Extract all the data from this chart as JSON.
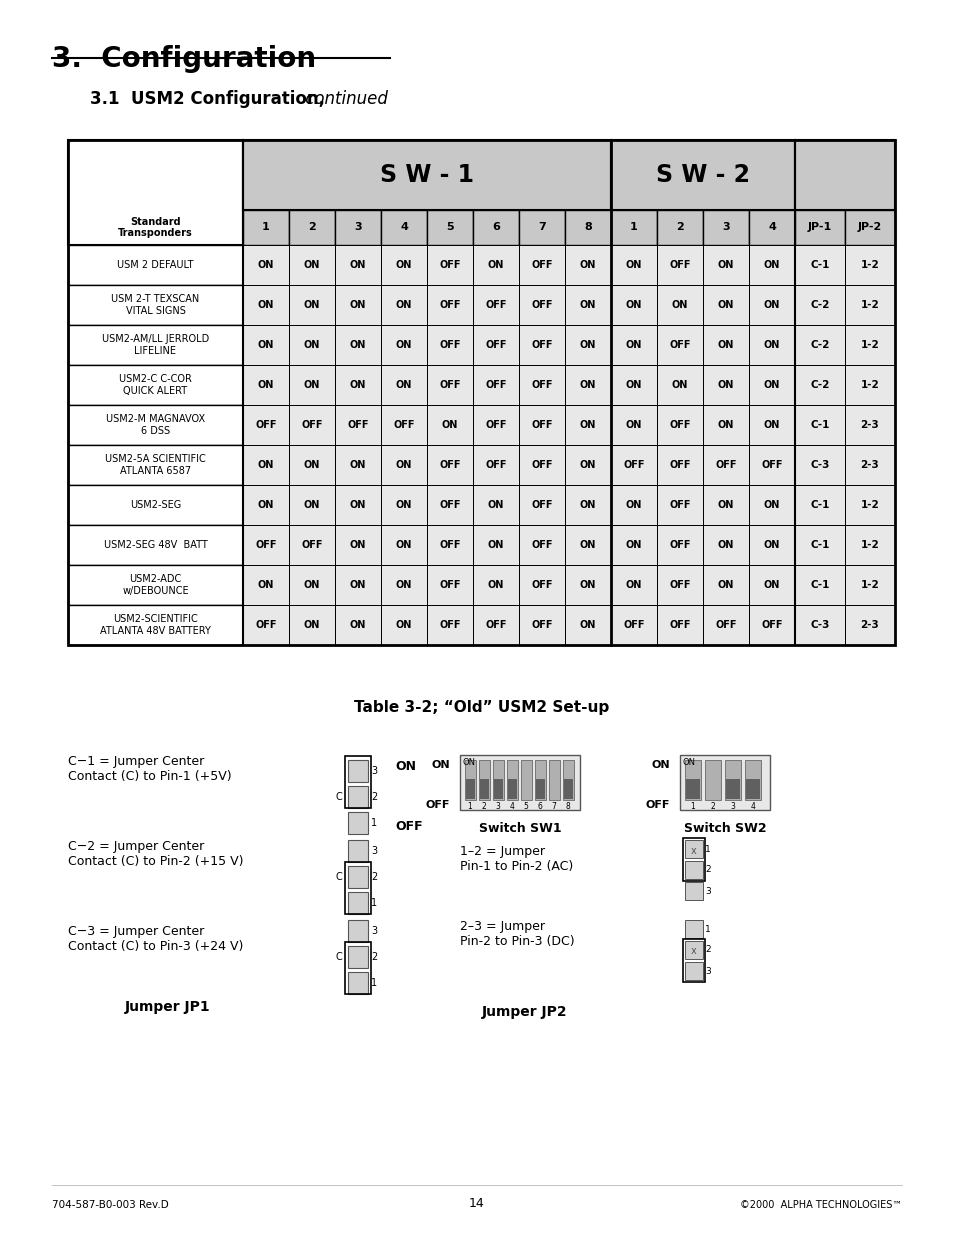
{
  "page_title": "3.  Configuration",
  "section_title_bold": "3.1  USM2 Configuration,",
  "section_title_italic": " continued",
  "table_caption": "Table 3-2; “Old” USM2 Set-up",
  "footer_left": "704-587-B0-003 Rev.D",
  "footer_center": "14",
  "footer_right": "©2000  ALPHA TECHNOLOGIES™",
  "sw1_label": "S W - 1",
  "sw2_label": "S W - 2",
  "col_header_left": "Standard\nTransponders",
  "sw1_cols": [
    "1",
    "2",
    "3",
    "4",
    "5",
    "6",
    "7",
    "8"
  ],
  "sw2_cols": [
    "1",
    "2",
    "3",
    "4"
  ],
  "jp_cols": [
    "JP-1",
    "JP-2"
  ],
  "rows": [
    {
      "name": "USM 2 DEFAULT",
      "sw1": [
        "ON",
        "ON",
        "ON",
        "ON",
        "OFF",
        "ON",
        "OFF",
        "ON"
      ],
      "sw2": [
        "ON",
        "OFF",
        "ON",
        "ON"
      ],
      "jp1": "C-1",
      "jp2": "1-2"
    },
    {
      "name": "USM 2-T TEXSCAN\nVITAL SIGNS",
      "sw1": [
        "ON",
        "ON",
        "ON",
        "ON",
        "OFF",
        "OFF",
        "OFF",
        "ON"
      ],
      "sw2": [
        "ON",
        "ON",
        "ON",
        "ON"
      ],
      "jp1": "C-2",
      "jp2": "1-2"
    },
    {
      "name": "USM2-AM/LL JERROLD\nLIFELINE",
      "sw1": [
        "ON",
        "ON",
        "ON",
        "ON",
        "OFF",
        "OFF",
        "OFF",
        "ON"
      ],
      "sw2": [
        "ON",
        "OFF",
        "ON",
        "ON"
      ],
      "jp1": "C-2",
      "jp2": "1-2"
    },
    {
      "name": "USM2-C C-COR\nQUICK ALERT",
      "sw1": [
        "ON",
        "ON",
        "ON",
        "ON",
        "OFF",
        "OFF",
        "OFF",
        "ON"
      ],
      "sw2": [
        "ON",
        "ON",
        "ON",
        "ON"
      ],
      "jp1": "C-2",
      "jp2": "1-2"
    },
    {
      "name": "USM2-M MAGNAVOX\n6 DSS",
      "sw1": [
        "OFF",
        "OFF",
        "OFF",
        "OFF",
        "ON",
        "OFF",
        "OFF",
        "ON"
      ],
      "sw2": [
        "ON",
        "OFF",
        "ON",
        "ON"
      ],
      "jp1": "C-1",
      "jp2": "2-3"
    },
    {
      "name": "USM2-5A SCIENTIFIC\nATLANTA 6587",
      "sw1": [
        "ON",
        "ON",
        "ON",
        "ON",
        "OFF",
        "OFF",
        "OFF",
        "ON"
      ],
      "sw2": [
        "OFF",
        "OFF",
        "OFF",
        "OFF"
      ],
      "jp1": "C-3",
      "jp2": "2-3"
    },
    {
      "name": "USM2-SEG",
      "sw1": [
        "ON",
        "ON",
        "ON",
        "ON",
        "OFF",
        "ON",
        "OFF",
        "ON"
      ],
      "sw2": [
        "ON",
        "OFF",
        "ON",
        "ON"
      ],
      "jp1": "C-1",
      "jp2": "1-2"
    },
    {
      "name": "USM2-SEG 48V  BATT",
      "sw1": [
        "OFF",
        "OFF",
        "ON",
        "ON",
        "OFF",
        "ON",
        "OFF",
        "ON"
      ],
      "sw2": [
        "ON",
        "OFF",
        "ON",
        "ON"
      ],
      "jp1": "C-1",
      "jp2": "1-2"
    },
    {
      "name": "USM2-ADC\nw/DEBOUNCE",
      "sw1": [
        "ON",
        "ON",
        "ON",
        "ON",
        "OFF",
        "ON",
        "OFF",
        "ON"
      ],
      "sw2": [
        "ON",
        "OFF",
        "ON",
        "ON"
      ],
      "jp1": "C-1",
      "jp2": "1-2"
    },
    {
      "name": "USM2-SCIENTIFIC\nATLANTA 48V BATTERY",
      "sw1": [
        "OFF",
        "ON",
        "ON",
        "ON",
        "OFF",
        "OFF",
        "OFF",
        "ON"
      ],
      "sw2": [
        "OFF",
        "OFF",
        "OFF",
        "OFF"
      ],
      "jp1": "C-3",
      "jp2": "2-3"
    }
  ],
  "bg_color": "#ffffff",
  "header_bg": "#c8c8c8",
  "cell_bg_even": "#e8e8e8",
  "cell_bg_odd": "#f0f0f0",
  "table_border": "#000000",
  "diagram_texts": [
    "C−1 = Jumper Center\nContact (C) to Pin-1 (+5V)",
    "C−2 = Jumper Center\nContact (C) to Pin-2 (+15 V)",
    "C−3 = Jumper Center\nContact (C) to Pin-3 (+24 V)"
  ],
  "diagram_bold_labels": [
    "Jumper JP1",
    "Jumper JP2"
  ],
  "sw_labels": [
    "Switch SW1",
    "Switch SW2"
  ],
  "jp2_texts": [
    "1–2 = Jumper\nPin-1 to Pin-2 (AC)",
    "2–3 = Jumper\nPin-2 to Pin-3 (DC)"
  ]
}
